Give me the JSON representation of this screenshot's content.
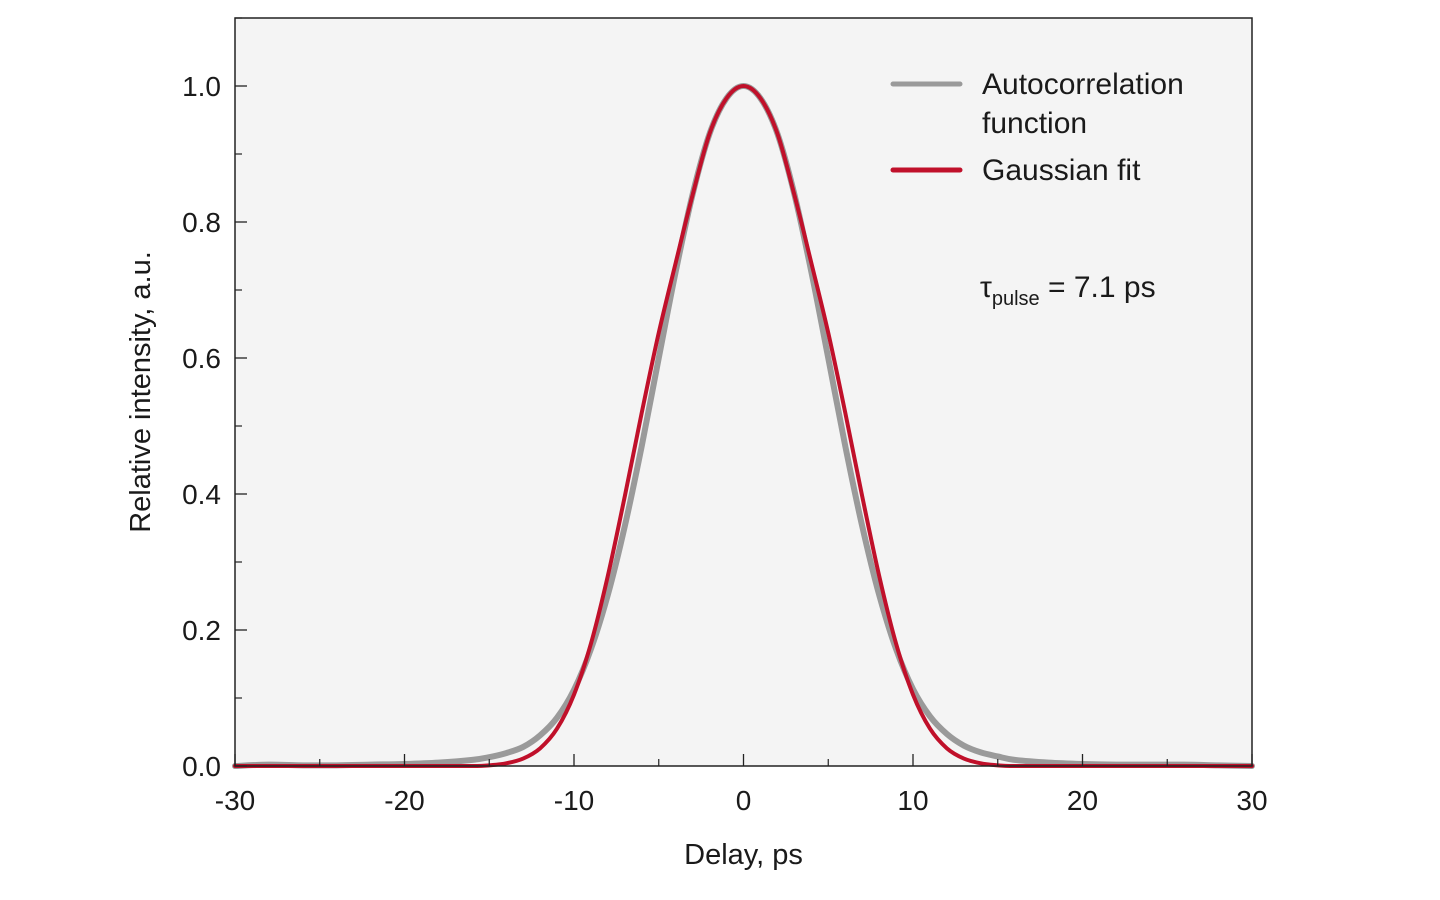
{
  "chart_data": {
    "type": "line",
    "title": "",
    "xlabel": "Delay, ps",
    "ylabel": "Relative intensity, a.u.",
    "xlim": [
      -30,
      30
    ],
    "ylim": [
      0,
      1.1
    ],
    "x_ticks": [
      -30,
      -20,
      -10,
      0,
      10,
      20,
      30
    ],
    "x_tick_labels": [
      "-30",
      "-20",
      "-10",
      "0",
      "10",
      "20",
      "30"
    ],
    "y_ticks": [
      0.0,
      0.2,
      0.4,
      0.6,
      0.8,
      1.0
    ],
    "y_tick_labels": [
      "0.0",
      "0.2",
      "0.4",
      "0.6",
      "0.8",
      "1.0"
    ],
    "grid": false,
    "legend_position": "top-right",
    "colors": {
      "background": "#f4f4f4",
      "autocorrelation": "#9a9a9a",
      "gaussian_fit": "#c0102a"
    },
    "series": [
      {
        "name": "Autocorrelation function",
        "x": [
          -30,
          -28,
          -26,
          -24,
          -22,
          -20,
          -18,
          -16,
          -15,
          -14,
          -13,
          -12,
          -11,
          -10,
          -9,
          -8,
          -7,
          -6,
          -5,
          -4,
          -3,
          -2,
          -1,
          0,
          1,
          2,
          3,
          4,
          5,
          6,
          7,
          8,
          9,
          10,
          11,
          12,
          13,
          14,
          15,
          16,
          18,
          20,
          22,
          24,
          26,
          28,
          30
        ],
        "y": [
          0.0,
          0.002,
          0.001,
          0.001,
          0.002,
          0.003,
          0.005,
          0.009,
          0.013,
          0.019,
          0.028,
          0.045,
          0.071,
          0.112,
          0.172,
          0.252,
          0.353,
          0.471,
          0.6,
          0.727,
          0.841,
          0.93,
          0.982,
          1.0,
          0.982,
          0.93,
          0.841,
          0.727,
          0.6,
          0.471,
          0.353,
          0.252,
          0.172,
          0.113,
          0.073,
          0.047,
          0.03,
          0.02,
          0.014,
          0.009,
          0.005,
          0.003,
          0.002,
          0.002,
          0.002,
          0.001,
          0.0
        ]
      },
      {
        "name": "Gaussian fit",
        "x": [
          -30,
          -28,
          -26,
          -24,
          -22,
          -20,
          -18,
          -16,
          -15,
          -14,
          -13,
          -12,
          -11,
          -10,
          -9,
          -8,
          -7,
          -6,
          -5,
          -4,
          -3,
          -2,
          -1,
          0,
          1,
          2,
          3,
          4,
          5,
          6,
          7,
          8,
          9,
          10,
          11,
          12,
          13,
          14,
          15,
          16,
          18,
          20,
          22,
          24,
          26,
          28,
          30
        ],
        "y": [
          0.0,
          0.0,
          0.0,
          0.0,
          0.0,
          0.0,
          0.0,
          0.0,
          0.001,
          0.004,
          0.011,
          0.026,
          0.055,
          0.105,
          0.18,
          0.28,
          0.397,
          0.52,
          0.637,
          0.74,
          0.84,
          0.93,
          0.982,
          1.0,
          0.982,
          0.93,
          0.84,
          0.74,
          0.637,
          0.52,
          0.397,
          0.28,
          0.18,
          0.105,
          0.055,
          0.026,
          0.011,
          0.004,
          0.001,
          0.0,
          0.0,
          0.0,
          0.0,
          0.0,
          0.0,
          0.0,
          0.0
        ]
      }
    ],
    "annotations": [
      {
        "symbol": "τ",
        "subscript": "pulse",
        "text": " = 7.1 ps"
      }
    ]
  }
}
